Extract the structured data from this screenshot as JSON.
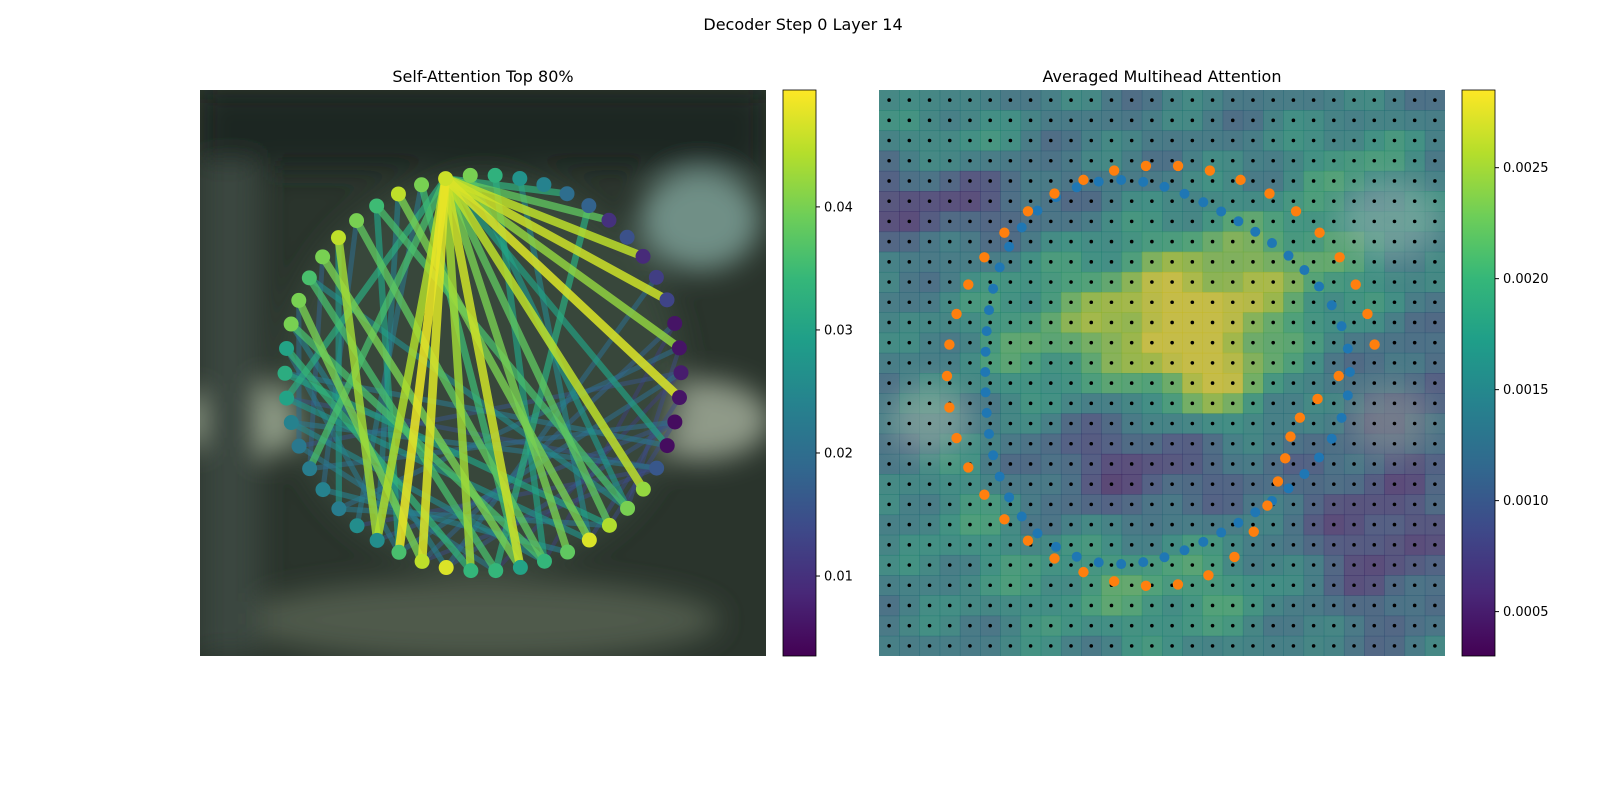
{
  "figure": {
    "title": "Decoder Step 0 Layer 14"
  },
  "colors": {
    "viridis": [
      "#440154",
      "#482878",
      "#3e4989",
      "#31688e",
      "#26828e",
      "#1f9e89",
      "#35b779",
      "#6ece58",
      "#b5de2b",
      "#fde725"
    ],
    "blue_points": "#1f77b4",
    "orange_points": "#ff7f0e",
    "grid_dots": "#000000"
  },
  "chart_data": [
    {
      "type": "network",
      "title": "Self-Attention Top 80%",
      "nodes_count": 50,
      "node_values": [
        0.046,
        0.04,
        0.033,
        0.027,
        0.024,
        0.02,
        0.018,
        0.01,
        0.015,
        0.009,
        0.012,
        0.013,
        0.006,
        0.006,
        0.007,
        0.006,
        0.005,
        0.005,
        0.016,
        0.042,
        0.04,
        0.044,
        0.047,
        0.038,
        0.034,
        0.03,
        0.034,
        0.034,
        0.047,
        0.045,
        0.036,
        0.026,
        0.026,
        0.023,
        0.024,
        0.023,
        0.022,
        0.024,
        0.03,
        0.032,
        0.03,
        0.04,
        0.04,
        0.036,
        0.04,
        0.045,
        0.04,
        0.035,
        0.045,
        0.04
      ],
      "edges": [
        [
          0,
          30,
          0.048
        ],
        [
          0,
          29,
          0.047
        ],
        [
          0,
          27,
          0.043
        ],
        [
          0,
          25,
          0.046
        ],
        [
          0,
          23,
          0.04
        ],
        [
          0,
          21,
          0.038
        ],
        [
          0,
          19,
          0.045
        ],
        [
          0,
          17,
          0.03
        ],
        [
          0,
          15,
          0.047
        ],
        [
          0,
          13,
          0.042
        ],
        [
          0,
          11,
          0.046
        ],
        [
          0,
          9,
          0.045
        ],
        [
          0,
          7,
          0.038
        ],
        [
          0,
          5,
          0.033
        ],
        [
          0,
          31,
          0.044
        ],
        [
          0,
          35,
          0.036
        ],
        [
          0,
          38,
          0.032
        ],
        [
          1,
          20,
          0.028
        ],
        [
          2,
          24,
          0.03
        ],
        [
          3,
          22,
          0.025
        ],
        [
          6,
          26,
          0.032
        ],
        [
          10,
          28,
          0.02
        ],
        [
          12,
          29,
          0.018
        ],
        [
          14,
          30,
          0.02
        ],
        [
          16,
          31,
          0.016
        ],
        [
          18,
          32,
          0.014
        ],
        [
          33,
          21,
          0.022
        ],
        [
          34,
          23,
          0.024
        ],
        [
          36,
          26,
          0.022
        ],
        [
          37,
          24,
          0.025
        ],
        [
          38,
          22,
          0.027
        ],
        [
          39,
          21,
          0.03
        ],
        [
          40,
          27,
          0.034
        ],
        [
          41,
          24,
          0.036
        ],
        [
          42,
          29,
          0.04
        ],
        [
          43,
          26,
          0.036
        ],
        [
          44,
          25,
          0.04
        ],
        [
          45,
          31,
          0.043
        ],
        [
          46,
          24,
          0.038
        ],
        [
          47,
          20,
          0.036
        ],
        [
          48,
          22,
          0.04
        ],
        [
          49,
          25,
          0.035
        ],
        [
          47,
          30,
          0.03
        ],
        [
          45,
          33,
          0.028
        ],
        [
          43,
          20,
          0.026
        ],
        [
          41,
          28,
          0.024
        ],
        [
          39,
          17,
          0.022
        ],
        [
          37,
          18,
          0.022
        ],
        [
          35,
          16,
          0.02
        ],
        [
          33,
          13,
          0.02
        ],
        [
          48,
          31,
          0.024
        ],
        [
          49,
          32,
          0.022
        ],
        [
          46,
          34,
          0.02
        ],
        [
          44,
          35,
          0.018
        ],
        [
          42,
          36,
          0.02
        ],
        [
          40,
          30,
          0.022
        ],
        [
          38,
          18,
          0.016
        ],
        [
          36,
          14,
          0.016
        ],
        [
          20,
          13,
          0.014
        ],
        [
          21,
          16,
          0.014
        ],
        [
          22,
          15,
          0.014
        ],
        [
          24,
          12,
          0.012
        ],
        [
          26,
          14,
          0.012
        ],
        [
          28,
          16,
          0.016
        ],
        [
          29,
          18,
          0.014
        ]
      ],
      "colorbar": {
        "ticks": [
          "0.01",
          "0.02",
          "0.03",
          "0.04"
        ],
        "tick_values": [
          0.01,
          0.02,
          0.03,
          0.04
        ],
        "range": [
          0.0035,
          0.0495
        ]
      }
    },
    {
      "type": "heatmap",
      "title": "Averaged Multihead Attention",
      "grid": {
        "rows": 28,
        "cols": 28
      },
      "colorbar": {
        "ticks": [
          "0.0005",
          "0.0010",
          "0.0015",
          "0.0020",
          "0.0025"
        ],
        "tick_values": [
          0.0005,
          0.001,
          0.0015,
          0.002,
          0.0025
        ],
        "range": [
          0.0003,
          0.00285
        ]
      },
      "series": [
        {
          "color": "blue",
          "count": 54
        },
        {
          "color": "orange",
          "count": 42
        }
      ]
    }
  ]
}
